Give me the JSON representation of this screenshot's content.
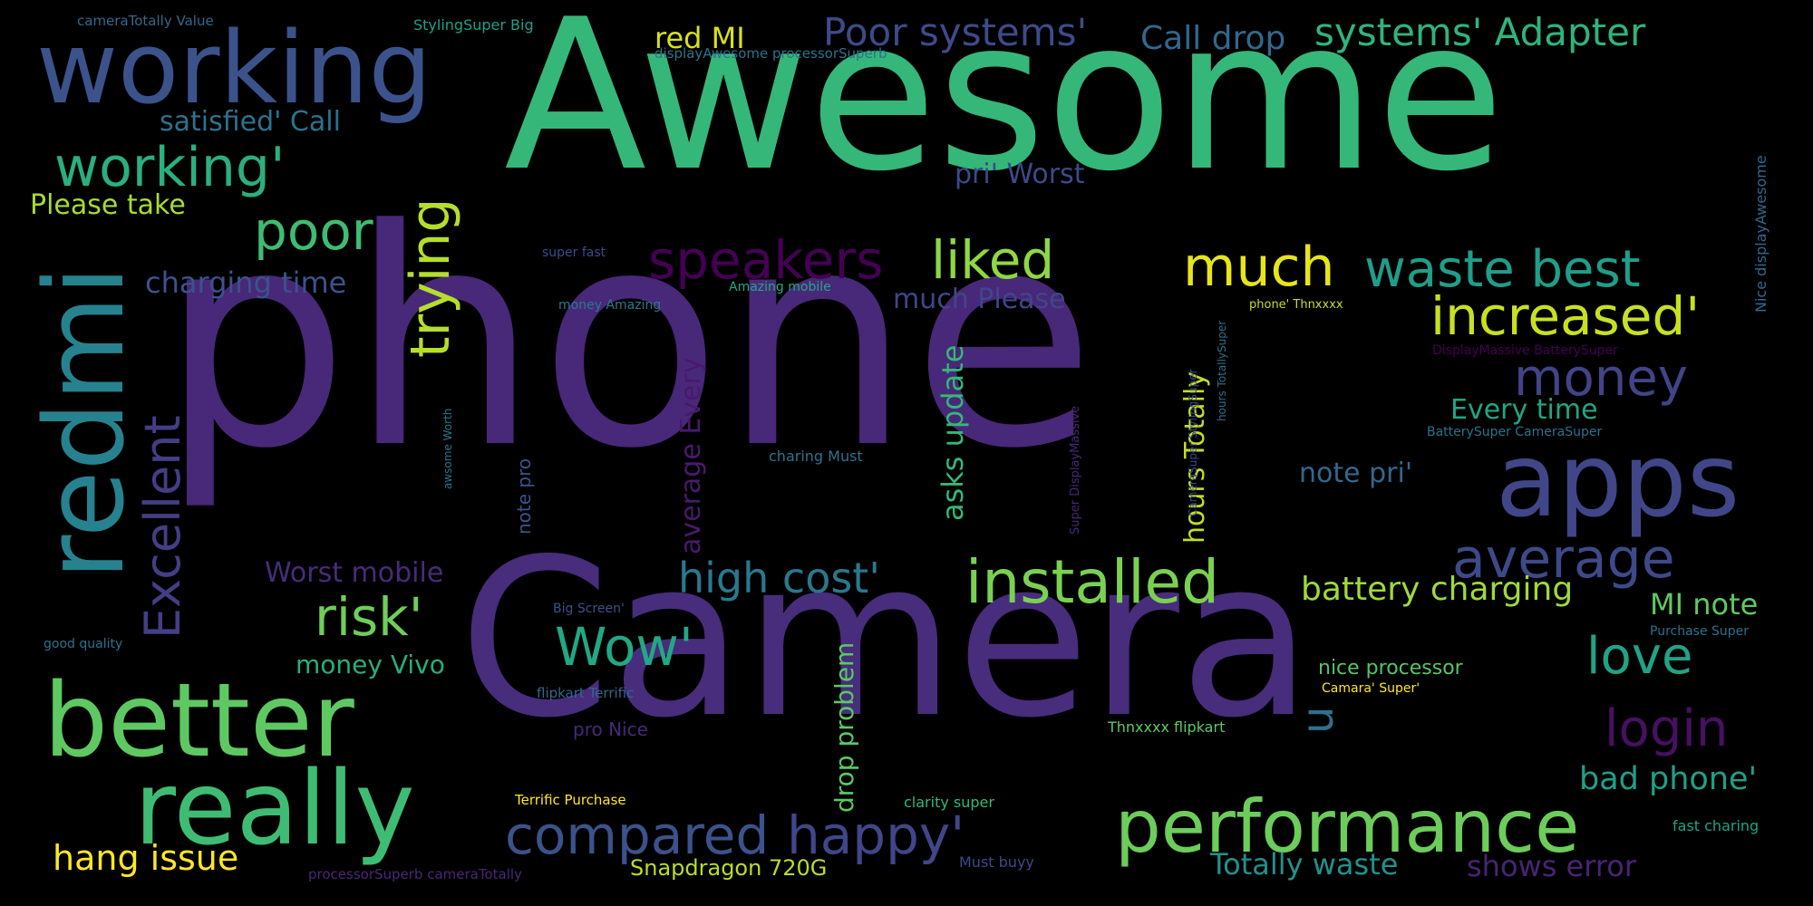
{
  "words": [
    {
      "text": "phone",
      "color": "#482878"
    },
    {
      "text": "Camera",
      "color": "#472d7b"
    },
    {
      "text": "Awesome",
      "color": "#35b779"
    },
    {
      "text": "working",
      "color": "#3b528b"
    },
    {
      "text": "redmi",
      "color": "#26828e"
    },
    {
      "text": "better",
      "color": "#5ec962"
    },
    {
      "text": "really",
      "color": "#3fbc73"
    },
    {
      "text": "apps",
      "color": "#404688"
    },
    {
      "text": "performance",
      "color": "#6ccd5a"
    },
    {
      "text": "installed",
      "color": "#7ad151"
    },
    {
      "text": "average",
      "color": "#3e4989"
    },
    {
      "text": "increased'",
      "color": "#c8e020"
    },
    {
      "text": "waste best",
      "color": "#1f9e89"
    },
    {
      "text": "much",
      "color": "#e7e419"
    },
    {
      "text": "speakers",
      "color": "#440154"
    },
    {
      "text": "liked",
      "color": "#8fd744"
    },
    {
      "text": "compared",
      "color": "#3b528b"
    },
    {
      "text": "happy'",
      "color": "#404688"
    },
    {
      "text": "Wow'",
      "color": "#22a884"
    },
    {
      "text": "risk'",
      "color": "#6ece58"
    },
    {
      "text": "high cost'",
      "color": "#2a788e"
    },
    {
      "text": "Excellent",
      "color": "#433e85"
    },
    {
      "text": "trying",
      "color": "#b5de2b"
    },
    {
      "text": "poor",
      "color": "#3fbc73"
    },
    {
      "text": "working'",
      "color": "#2ab07f"
    },
    {
      "text": "money",
      "color": "#414487"
    },
    {
      "text": "love",
      "color": "#20a386"
    },
    {
      "text": "login",
      "color": "#471063"
    },
    {
      "text": "MI note",
      "color": "#5ec962"
    },
    {
      "text": "bad phone'",
      "color": "#1fa088"
    },
    {
      "text": "battery charging",
      "color": "#9fda3a"
    },
    {
      "text": "Poor systems'",
      "color": "#3e4a89"
    },
    {
      "text": "systems' Adapter",
      "color": "#2fb47c"
    },
    {
      "text": "Call drop",
      "color": "#31688e"
    },
    {
      "text": "red MI",
      "color": "#d8e219"
    },
    {
      "text": "u",
      "color": "#2c728e"
    },
    {
      "text": "hang issue",
      "color": "#fde725"
    },
    {
      "text": "shows error",
      "color": "#482475"
    },
    {
      "text": "Totally waste",
      "color": "#21918c"
    },
    {
      "text": "Snapdragon 720G",
      "color": "#b8de29"
    },
    {
      "text": "drop problem",
      "color": "#5cc863"
    },
    {
      "text": "asks update",
      "color": "#35b779"
    },
    {
      "text": "hours Totally",
      "color": "#c0df25"
    },
    {
      "text": "average Every",
      "color": "#481a6c"
    },
    {
      "text": "Every time",
      "color": "#21a685"
    },
    {
      "text": "note pri'",
      "color": "#31688e"
    },
    {
      "text": "much Please",
      "color": "#404688"
    },
    {
      "text": "charging time",
      "color": "#3b528b"
    },
    {
      "text": "Please take",
      "color": "#a5db36"
    },
    {
      "text": "satisfied' Call",
      "color": "#2c728e"
    },
    {
      "text": "pri' Worst",
      "color": "#3e4989"
    },
    {
      "text": "Worst mobile",
      "color": "#472c7a"
    },
    {
      "text": "money Vivo",
      "color": "#27ad81"
    },
    {
      "text": "nice processor",
      "color": "#54c568"
    },
    {
      "text": "pro Nice",
      "color": "#482878"
    },
    {
      "text": "note pro",
      "color": "#3b528b"
    },
    {
      "text": "cameraTotally Value",
      "color": "#31688e"
    },
    {
      "text": "StylingSuper Big",
      "color": "#1fa088"
    },
    {
      "text": "displayAwesome processorSuperb",
      "color": "#2c728e"
    },
    {
      "text": "super fast",
      "color": "#3e4989"
    },
    {
      "text": "Amazing mobile",
      "color": "#22a884"
    },
    {
      "text": "money Amazing",
      "color": "#29798e"
    },
    {
      "text": "phone' Thnxxxx",
      "color": "#c2df23"
    },
    {
      "text": "DisplayMassive BatterySuper",
      "color": "#440154"
    },
    {
      "text": "BatterySuper CameraSuper",
      "color": "#2c728e"
    },
    {
      "text": "hours TotallySuper",
      "color": "#2c728e"
    },
    {
      "text": "CameraSuper StylingSuper",
      "color": "#3e4989"
    },
    {
      "text": "Super DisplayMassive",
      "color": "#482878"
    },
    {
      "text": "awsome Worth",
      "color": "#2a788e"
    },
    {
      "text": "charing Must",
      "color": "#2c728e"
    },
    {
      "text": "Nice displayAwesome",
      "color": "#31688e"
    },
    {
      "text": "Purchase Super",
      "color": "#2c728e"
    },
    {
      "text": "Camara' Super'",
      "color": "#fde725"
    },
    {
      "text": "Thnxxxx flipkart",
      "color": "#5ec962"
    },
    {
      "text": "clarity super",
      "color": "#35b779"
    },
    {
      "text": "fast charing",
      "color": "#20a386"
    },
    {
      "text": "Must buyy",
      "color": "#3e4989"
    },
    {
      "text": "processorSuperb cameraTotally",
      "color": "#482878"
    },
    {
      "text": "Terrific Purchase",
      "color": "#fde725"
    },
    {
      "text": "flipkart Terrific",
      "color": "#31688e"
    },
    {
      "text": "Big Screen'",
      "color": "#3b528b"
    },
    {
      "text": "good quality",
      "color": "#2c728e"
    }
  ]
}
